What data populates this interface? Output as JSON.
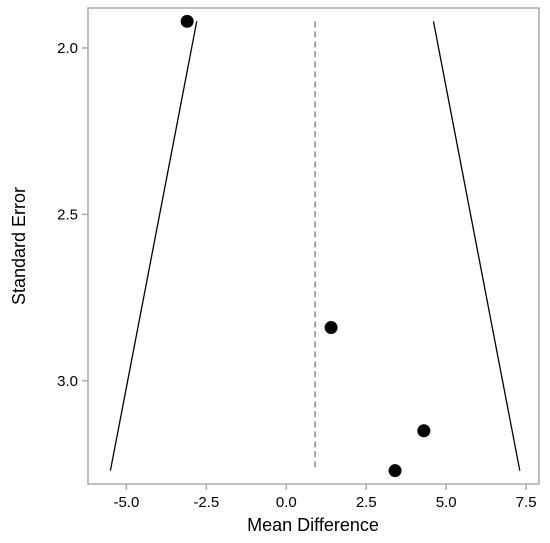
{
  "chart_data": {
    "type": "scatter",
    "title": "",
    "xlabel": "Mean Difference",
    "ylabel": "Standard Error",
    "xlim": [
      -6.2,
      7.9
    ],
    "ylim": [
      1.88,
      3.31
    ],
    "y_reversed": true,
    "x_ticks": [
      -5.0,
      -2.5,
      0.0,
      2.5,
      5.0,
      7.5
    ],
    "x_tick_labels": [
      "-5.0",
      "-2.5",
      "0.0",
      "2.5",
      "5.0",
      "7.5"
    ],
    "y_ticks": [
      2.0,
      2.5,
      3.0
    ],
    "y_tick_labels": [
      "2.0",
      "2.5",
      "3.0"
    ],
    "grid": false,
    "legend": "none",
    "points": [
      {
        "x": -3.1,
        "y": 1.92
      },
      {
        "x": 1.4,
        "y": 2.84
      },
      {
        "x": 4.3,
        "y": 3.15
      },
      {
        "x": 3.4,
        "y": 3.27
      }
    ],
    "reference_line": {
      "x": 0.9,
      "y_from": 1.92,
      "y_to": 3.27,
      "style": "dashed"
    },
    "funnel_lines": [
      {
        "x1": -2.8,
        "y1": 1.92,
        "x2": -5.5,
        "y2": 3.27
      },
      {
        "x1": 4.6,
        "y1": 1.92,
        "x2": 7.3,
        "y2": 3.27
      }
    ],
    "colors": {
      "points": "#000000",
      "lines": "#000000",
      "reference": "#888888",
      "frame": "#aaaaaa"
    }
  }
}
